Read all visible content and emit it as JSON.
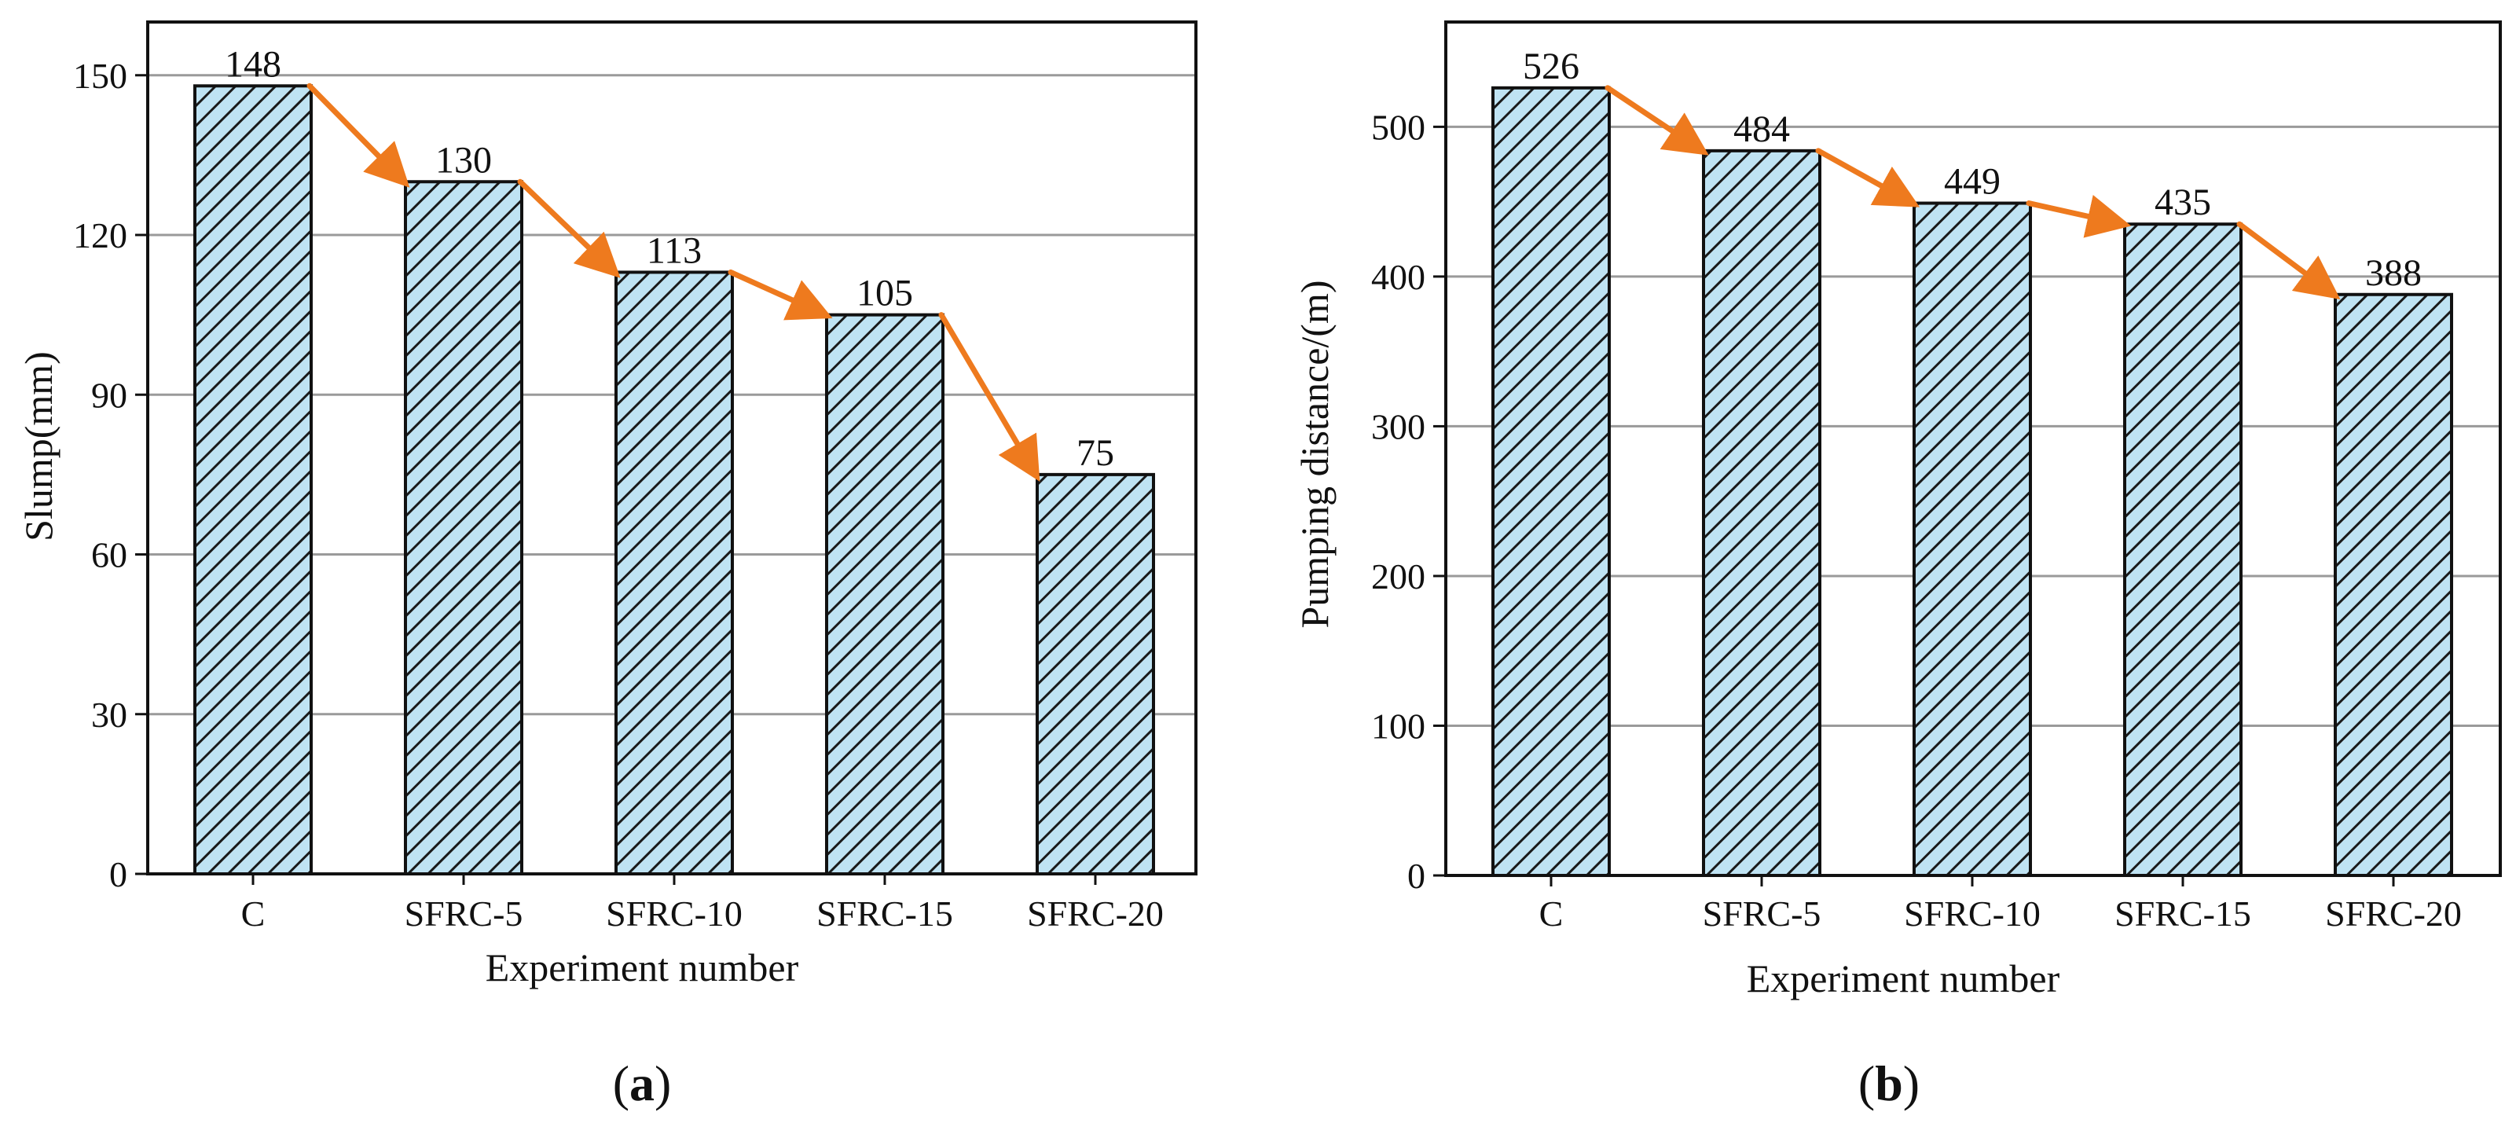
{
  "figure": {
    "accent_color": "#EE7A1E",
    "bar_fill_color": "#BFE3F3",
    "hatch_color": "#1a1a1a",
    "grid_color": "#9a9a9a"
  },
  "chart_data": [
    {
      "type": "bar",
      "id": "a",
      "panel_label": "a",
      "categories": [
        "C",
        "SFRC-5",
        "SFRC-10",
        "SFRC-15",
        "SFRC-20"
      ],
      "values": [
        148,
        130,
        113,
        105,
        75
      ],
      "value_labels": [
        "148",
        "130",
        "113",
        "105",
        "75"
      ],
      "title": "",
      "xlabel": "Experiment number",
      "ylabel": "Slump(mm)",
      "ylim": [
        0,
        160
      ],
      "yticks": [
        0,
        30,
        60,
        90,
        120,
        150
      ],
      "ytick_labels": [
        "0",
        "30",
        "60",
        "90",
        "120",
        "150"
      ],
      "grid": true,
      "trend_arrows": true
    },
    {
      "type": "bar",
      "id": "b",
      "panel_label": "b",
      "categories": [
        "C",
        "SFRC-5",
        "SFRC-10",
        "SFRC-15",
        "SFRC-20"
      ],
      "values": [
        526,
        484,
        449,
        435,
        388
      ],
      "value_labels": [
        "526",
        "484",
        "449",
        "435",
        "388"
      ],
      "title": "",
      "xlabel": "Experiment number",
      "ylabel": "Pumping distance/(m)",
      "ylim": [
        0,
        570
      ],
      "yticks": [
        0,
        100,
        200,
        300,
        400,
        500
      ],
      "ytick_labels": [
        "0",
        "100",
        "200",
        "300",
        "400",
        "500"
      ],
      "grid": true,
      "trend_arrows": true
    }
  ]
}
